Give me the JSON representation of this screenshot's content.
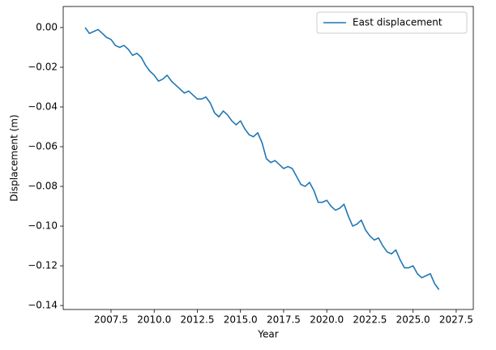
{
  "chart_data": {
    "type": "line",
    "x_label": "Year",
    "y_label": "Displacement (m)",
    "x": [
      2006.0,
      2006.25,
      2006.5,
      2006.75,
      2007.0,
      2007.25,
      2007.5,
      2007.75,
      2008.0,
      2008.25,
      2008.5,
      2008.75,
      2009.0,
      2009.25,
      2009.5,
      2009.75,
      2010.0,
      2010.25,
      2010.5,
      2010.75,
      2011.0,
      2011.25,
      2011.5,
      2011.75,
      2012.0,
      2012.25,
      2012.5,
      2012.75,
      2013.0,
      2013.25,
      2013.5,
      2013.75,
      2014.0,
      2014.25,
      2014.5,
      2014.75,
      2015.0,
      2015.25,
      2015.5,
      2015.75,
      2016.0,
      2016.25,
      2016.5,
      2016.75,
      2017.0,
      2017.25,
      2017.5,
      2017.75,
      2018.0,
      2018.25,
      2018.5,
      2018.75,
      2019.0,
      2019.25,
      2019.5,
      2019.75,
      2020.0,
      2020.25,
      2020.5,
      2020.75,
      2021.0,
      2021.25,
      2021.5,
      2021.75,
      2022.0,
      2022.25,
      2022.5,
      2022.75,
      2023.0,
      2023.25,
      2023.5,
      2023.75,
      2024.0,
      2024.25,
      2024.5,
      2024.75,
      2025.0,
      2025.25,
      2025.5,
      2025.75,
      2026.0,
      2026.25,
      2026.5
    ],
    "series": [
      {
        "name": "East displacement",
        "color": "#1f77b4",
        "values": [
          0.0,
          -0.003,
          -0.002,
          -0.001,
          -0.003,
          -0.005,
          -0.006,
          -0.009,
          -0.01,
          -0.009,
          -0.011,
          -0.014,
          -0.013,
          -0.015,
          -0.019,
          -0.022,
          -0.024,
          -0.027,
          -0.026,
          -0.024,
          -0.027,
          -0.029,
          -0.031,
          -0.033,
          -0.032,
          -0.034,
          -0.036,
          -0.036,
          -0.035,
          -0.038,
          -0.043,
          -0.045,
          -0.042,
          -0.044,
          -0.047,
          -0.049,
          -0.047,
          -0.051,
          -0.054,
          -0.055,
          -0.053,
          -0.058,
          -0.066,
          -0.068,
          -0.067,
          -0.069,
          -0.071,
          -0.07,
          -0.071,
          -0.075,
          -0.079,
          -0.08,
          -0.078,
          -0.082,
          -0.088,
          -0.088,
          -0.087,
          -0.09,
          -0.092,
          -0.091,
          -0.089,
          -0.095,
          -0.1,
          -0.099,
          -0.097,
          -0.102,
          -0.105,
          -0.107,
          -0.106,
          -0.11,
          -0.113,
          -0.114,
          -0.112,
          -0.117,
          -0.121,
          -0.121,
          -0.12,
          -0.124,
          -0.126,
          -0.125,
          -0.124,
          -0.129,
          -0.132
        ]
      }
    ],
    "xlim": [
      2004.73,
      2028.49
    ],
    "ylim": [
      -0.142,
      0.0106
    ],
    "xticks": [
      2007.5,
      {
        "value": 2010,
        "label": "2010.0"
      },
      2012.5,
      {
        "value": 2015,
        "label": "2015.0"
      },
      2017.5,
      {
        "value": 2020,
        "label": "2020.0"
      },
      2022.5,
      {
        "value": 2025,
        "label": "2025.0"
      },
      2027.5
    ],
    "yticks": [
      {
        "value": 0,
        "label": "0.00"
      },
      {
        "value": -0.02,
        "label": "−0.02"
      },
      {
        "value": -0.04,
        "label": "−0.04"
      },
      {
        "value": -0.06,
        "label": "−0.06"
      },
      {
        "value": -0.08,
        "label": "−0.08"
      },
      {
        "value": -0.1,
        "label": "−0.10"
      },
      {
        "value": -0.12,
        "label": "−0.12"
      },
      {
        "value": -0.14,
        "label": "−0.14"
      }
    ],
    "legend": "upper right",
    "grid": false
  }
}
